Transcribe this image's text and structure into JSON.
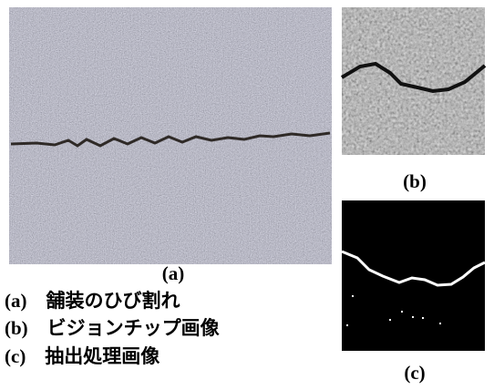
{
  "figure": {
    "panels": [
      {
        "label": "(a)"
      },
      {
        "label": "(b)"
      },
      {
        "label": "(c)"
      }
    ],
    "captions": [
      "(a)　舗装のひび割れ",
      "(b)　ビジョンチップ画像",
      "(c)　抽出処理画像"
    ]
  }
}
